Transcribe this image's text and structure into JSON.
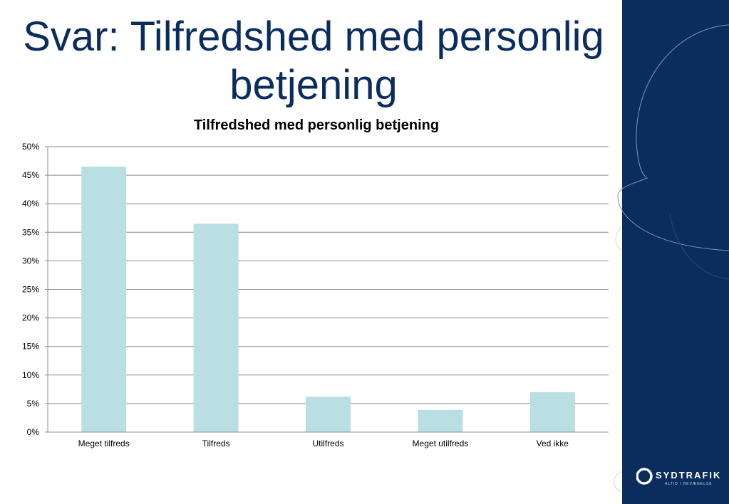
{
  "slide": {
    "title_line1": "Svar: Tilfredshed med personlig",
    "title_line2": "betjening"
  },
  "brand": {
    "logo_name": "SYDTRAFIK",
    "logo_tagline": "ALTID I BEVÆGELSE",
    "logo_icon": "sydtrafik-logo-icon",
    "panel_color": "#0a2d5e",
    "title_color": "#0a2d5e"
  },
  "chart_data": {
    "type": "bar",
    "title": "Tilfredshed med personlig betjening",
    "xlabel": "",
    "ylabel": "",
    "categories": [
      "Meget tilfreds",
      "Tilfreds",
      "Utilfreds",
      "Meget utilfreds",
      "Ved ikke"
    ],
    "values": [
      46.5,
      36.5,
      6.2,
      3.9,
      7.0
    ],
    "ylim": [
      0,
      50
    ],
    "yticks": [
      "0%",
      "5%",
      "10%",
      "15%",
      "20%",
      "25%",
      "30%",
      "35%",
      "40%",
      "45%",
      "50%"
    ],
    "bar_color": "#b9dfe3",
    "grid": true,
    "legend": "none"
  }
}
